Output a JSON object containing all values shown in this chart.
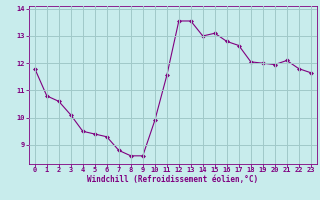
{
  "x": [
    0,
    1,
    2,
    3,
    4,
    5,
    6,
    7,
    8,
    9,
    10,
    11,
    12,
    13,
    14,
    15,
    16,
    17,
    18,
    19,
    20,
    21,
    22,
    23
  ],
  "y": [
    11.8,
    10.8,
    10.6,
    10.1,
    9.5,
    9.4,
    9.3,
    8.8,
    8.6,
    8.6,
    9.9,
    11.55,
    13.55,
    13.55,
    13.0,
    13.1,
    12.8,
    12.65,
    12.05,
    12.0,
    11.95,
    12.1,
    11.8,
    11.65
  ],
  "line_color": "#800080",
  "marker": "D",
  "marker_size": 2,
  "bg_color": "#c8ecec",
  "grid_color": "#a0c8c8",
  "xlabel": "Windchill (Refroidissement éolien,°C)",
  "xlabel_color": "#800080",
  "ylim": [
    8.3,
    14.1
  ],
  "xlim": [
    -0.5,
    23.5
  ],
  "yticks": [
    9,
    10,
    11,
    12,
    13,
    14
  ],
  "xticks": [
    0,
    1,
    2,
    3,
    4,
    5,
    6,
    7,
    8,
    9,
    10,
    11,
    12,
    13,
    14,
    15,
    16,
    17,
    18,
    19,
    20,
    21,
    22,
    23
  ],
  "tick_color": "#800080",
  "label_fontsize": 5.5,
  "tick_fontsize": 5.0
}
